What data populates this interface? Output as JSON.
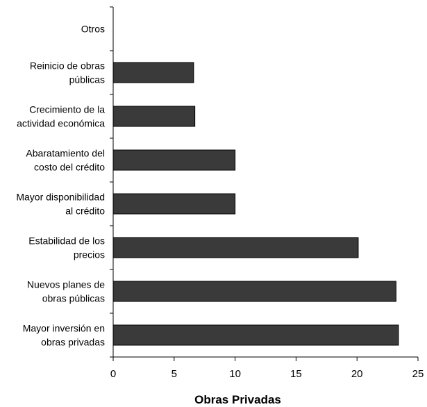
{
  "chart_data": {
    "type": "bar",
    "orientation": "horizontal",
    "categories": [
      [
        "Otros"
      ],
      [
        "Reinicio de obras",
        "públicas"
      ],
      [
        "Crecimiento de la",
        "actividad económica"
      ],
      [
        "Abaratamiento del",
        "costo del crédito"
      ],
      [
        "Mayor disponibilidad",
        "al crédito"
      ],
      [
        "Estabilidad de los",
        "precios"
      ],
      [
        "Nuevos planes de",
        "obras públicas"
      ],
      [
        "Mayor inversión en",
        "obras privadas"
      ]
    ],
    "values": [
      0,
      6.6,
      6.7,
      10,
      10,
      20.1,
      23.2,
      23.4
    ],
    "xlabel": "Obras Privadas",
    "ylabel": "",
    "xlim": [
      0,
      25
    ],
    "xticks": [
      0,
      5,
      10,
      15,
      20,
      25
    ],
    "grid": false,
    "colors": {
      "bar": "#3a3a3a",
      "bar_stroke": "#000000"
    }
  }
}
